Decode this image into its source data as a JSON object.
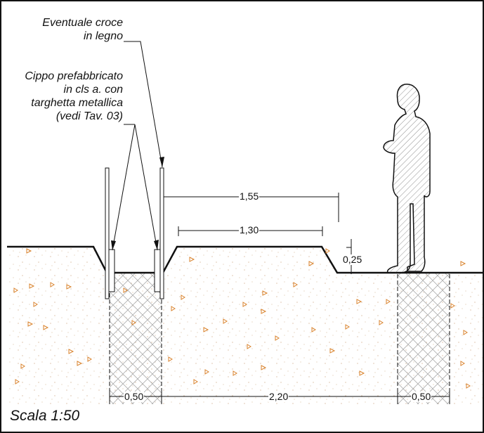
{
  "labels": {
    "croce_line1": "Eventuale croce",
    "croce_line2": "in legno",
    "cippo_line1": "Cippo prefabbricato",
    "cippo_line2": "in cls a. con",
    "cippo_line3": "targhetta metallica",
    "cippo_line4": "(vedi Tav. 03)"
  },
  "dimensions": {
    "d155": "1,55",
    "d130": "1,30",
    "d025": "0,25",
    "d050_left": "0,50",
    "d220": "2,20",
    "d050_right": "0,50"
  },
  "scale": "Scala 1:50",
  "colors": {
    "line": "#111111",
    "marker": "#d9822b",
    "person_fill": "#c7c7c7",
    "hatch": "#999999"
  }
}
